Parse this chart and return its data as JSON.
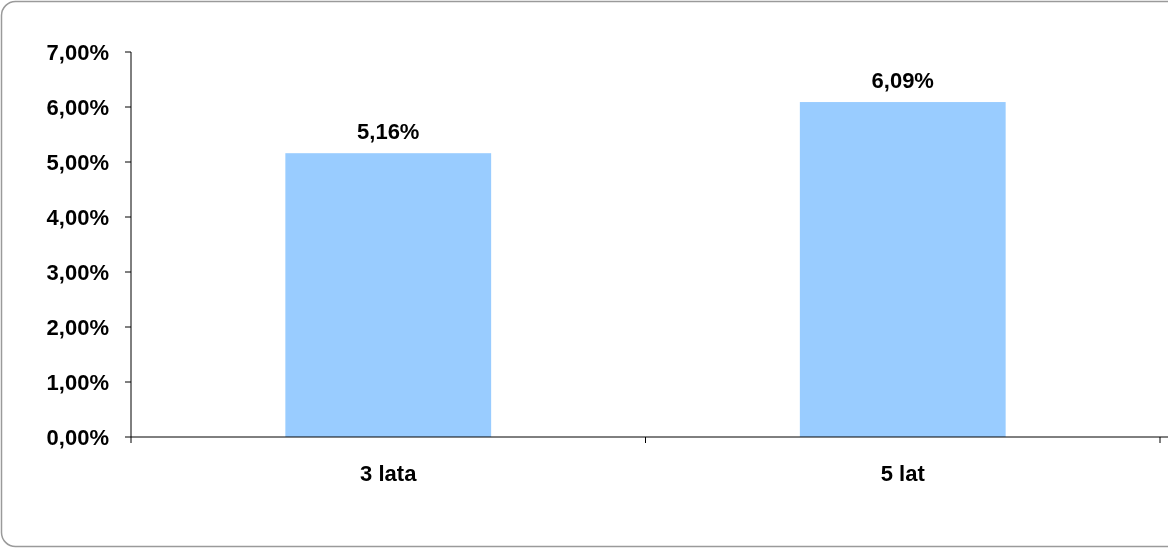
{
  "chart_data": {
    "type": "bar",
    "categories": [
      "3 lata",
      "5 lat"
    ],
    "values": [
      5.16,
      6.09
    ],
    "color": "#99ccff",
    "value_labels": [
      "5,16%",
      "6,09%"
    ],
    "ylim": [
      0,
      7
    ],
    "yticks": [
      {
        "value": 0,
        "label": "0,00%"
      },
      {
        "value": 1,
        "label": "1,00%"
      },
      {
        "value": 2,
        "label": "2,00%"
      },
      {
        "value": 3,
        "label": "3,00%"
      },
      {
        "value": 4,
        "label": "4,00%"
      },
      {
        "value": 5,
        "label": "5,00%"
      },
      {
        "value": 6,
        "label": "6,00%"
      },
      {
        "value": 7,
        "label": "7,00%"
      }
    ],
    "grid": false
  }
}
